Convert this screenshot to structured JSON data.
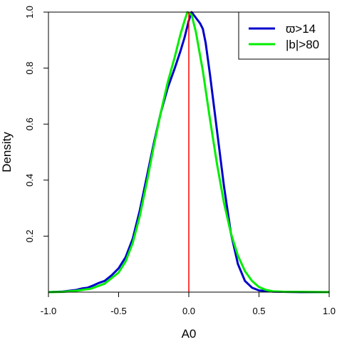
{
  "chart_data": {
    "type": "line",
    "title": "",
    "xlabel": "A0",
    "ylabel": "Density",
    "xlim": [
      -1.0,
      1.0
    ],
    "ylim": [
      0,
      1.0
    ],
    "x_ticks": [
      "-1.0",
      "-0.5",
      "0.0",
      "0.5",
      "1.0"
    ],
    "y_ticks": [
      "0.2",
      "0.4",
      "0.6",
      "0.8",
      "1.0"
    ],
    "grid": false,
    "legend_position": "top-right",
    "reference_line": {
      "x": 0.0,
      "color": "#ff0000"
    },
    "series": [
      {
        "name": "ϖ>14",
        "color": "#0000cc",
        "points": [
          [
            -1.0,
            0.0
          ],
          [
            -0.9,
            0.002
          ],
          [
            -0.8,
            0.008
          ],
          [
            -0.76,
            0.013
          ],
          [
            -0.72,
            0.016
          ],
          [
            -0.68,
            0.024
          ],
          [
            -0.64,
            0.033
          ],
          [
            -0.6,
            0.04
          ],
          [
            -0.55,
            0.06
          ],
          [
            -0.5,
            0.085
          ],
          [
            -0.45,
            0.125
          ],
          [
            -0.4,
            0.19
          ],
          [
            -0.35,
            0.29
          ],
          [
            -0.3,
            0.41
          ],
          [
            -0.25,
            0.53
          ],
          [
            -0.2,
            0.64
          ],
          [
            -0.15,
            0.73
          ],
          [
            -0.1,
            0.8
          ],
          [
            -0.06,
            0.86
          ],
          [
            -0.03,
            0.91
          ],
          [
            0.0,
            0.97
          ],
          [
            0.02,
            1.0
          ],
          [
            0.05,
            0.98
          ],
          [
            0.08,
            0.96
          ],
          [
            0.1,
            0.94
          ],
          [
            0.12,
            0.89
          ],
          [
            0.15,
            0.78
          ],
          [
            0.2,
            0.58
          ],
          [
            0.25,
            0.38
          ],
          [
            0.3,
            0.21
          ],
          [
            0.35,
            0.1
          ],
          [
            0.4,
            0.04
          ],
          [
            0.45,
            0.016
          ],
          [
            0.5,
            0.006
          ],
          [
            0.6,
            0.002
          ],
          [
            0.8,
            0.0
          ],
          [
            1.0,
            0.0
          ]
        ]
      },
      {
        "name": "|b|>80",
        "color": "#00ee00",
        "points": [
          [
            -1.0,
            0.0
          ],
          [
            -0.9,
            0.001
          ],
          [
            -0.8,
            0.005
          ],
          [
            -0.7,
            0.012
          ],
          [
            -0.6,
            0.03
          ],
          [
            -0.5,
            0.07
          ],
          [
            -0.45,
            0.11
          ],
          [
            -0.4,
            0.175
          ],
          [
            -0.35,
            0.27
          ],
          [
            -0.3,
            0.39
          ],
          [
            -0.25,
            0.52
          ],
          [
            -0.2,
            0.64
          ],
          [
            -0.15,
            0.75
          ],
          [
            -0.1,
            0.84
          ],
          [
            -0.06,
            0.92
          ],
          [
            -0.03,
            0.97
          ],
          [
            -0.01,
            1.0
          ],
          [
            0.02,
            0.99
          ],
          [
            0.05,
            0.93
          ],
          [
            0.1,
            0.79
          ],
          [
            0.15,
            0.62
          ],
          [
            0.2,
            0.46
          ],
          [
            0.25,
            0.32
          ],
          [
            0.3,
            0.21
          ],
          [
            0.35,
            0.13
          ],
          [
            0.4,
            0.075
          ],
          [
            0.45,
            0.04
          ],
          [
            0.5,
            0.018
          ],
          [
            0.55,
            0.008
          ],
          [
            0.6,
            0.003
          ],
          [
            0.7,
            0.001
          ],
          [
            0.8,
            0.001
          ],
          [
            1.0,
            0.0
          ]
        ]
      }
    ]
  }
}
